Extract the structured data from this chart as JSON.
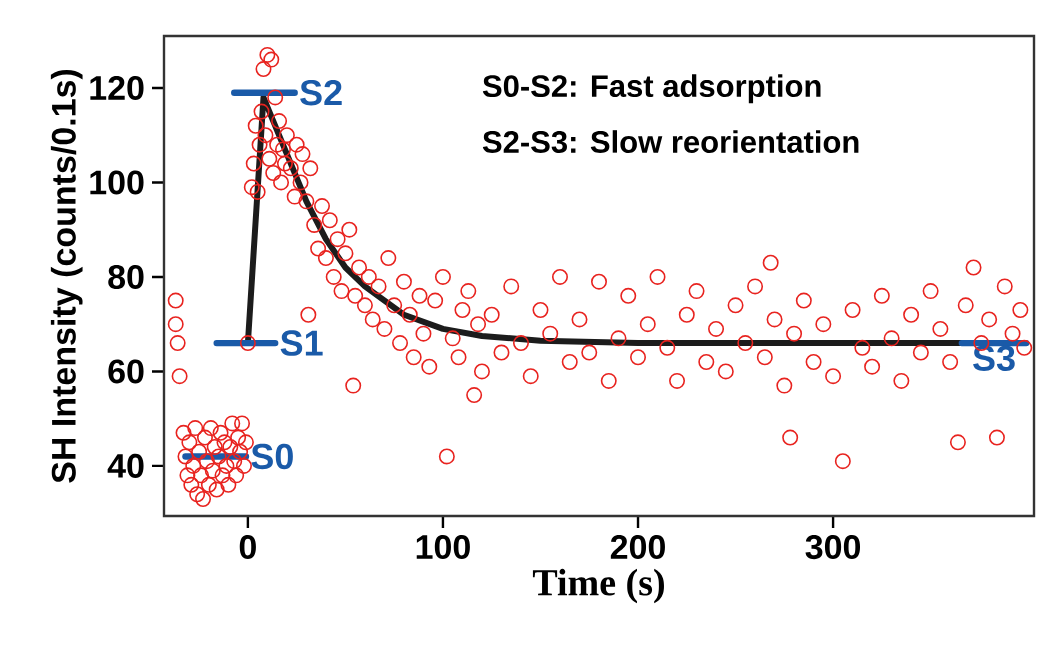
{
  "chart_data": {
    "type": "scatter",
    "xlabel": "Time (s)",
    "ylabel": "SH Intensity (counts/0.1s)",
    "xlim": [
      -43,
      403
    ],
    "ylim": [
      29.4,
      131
    ],
    "xticks": [
      0,
      100,
      200,
      300
    ],
    "yticks": [
      40,
      60,
      80,
      100,
      120
    ],
    "annotations": [
      "S0-S2: Fast adsorption",
      "S2-S3: Slow reorientation"
    ],
    "series": [
      {
        "color": "#e8231f",
        "marker": "circle",
        "x": [
          -37,
          -37,
          -36,
          -35,
          -33,
          -32,
          -31,
          -30,
          -29,
          -28,
          -27,
          -26,
          -25,
          -24,
          -23,
          -22,
          -21,
          -20,
          -19,
          -18,
          -17,
          -16,
          -15,
          -14,
          -13,
          -12,
          -11,
          -10,
          -9,
          -8,
          -7,
          -6,
          -5,
          -4,
          -3,
          -2,
          -1,
          0,
          2,
          3,
          4,
          5,
          6,
          7,
          8,
          9,
          10,
          11,
          12,
          13,
          14,
          15,
          16,
          17,
          18,
          19,
          20,
          22,
          24,
          25,
          27,
          28,
          30,
          31,
          32,
          34,
          36,
          38,
          40,
          42,
          44,
          46,
          48,
          50,
          52,
          54,
          55,
          57,
          60,
          62,
          64,
          67,
          70,
          72,
          75,
          78,
          80,
          83,
          85,
          88,
          90,
          93,
          96,
          100,
          102,
          105,
          108,
          110,
          113,
          116,
          118,
          120,
          125,
          130,
          135,
          140,
          145,
          150,
          155,
          160,
          165,
          170,
          175,
          180,
          185,
          190,
          195,
          200,
          205,
          210,
          215,
          220,
          225,
          230,
          235,
          240,
          245,
          250,
          255,
          260,
          265,
          268,
          270,
          275,
          278,
          280,
          285,
          290,
          295,
          300,
          305,
          310,
          315,
          320,
          325,
          330,
          335,
          340,
          345,
          350,
          355,
          360,
          364,
          368,
          372,
          376,
          380,
          384,
          388,
          392,
          396,
          398
        ],
        "values": [
          75,
          70,
          66,
          59,
          47,
          42,
          38,
          45,
          36,
          40,
          48,
          34,
          43,
          38,
          33,
          46,
          41,
          36,
          48,
          39,
          44,
          35,
          42,
          47,
          38,
          45,
          40,
          36,
          44,
          49,
          41,
          38,
          46,
          43,
          49,
          40,
          45,
          66,
          99,
          104,
          112,
          98,
          108,
          115,
          124,
          110,
          127,
          105,
          126,
          102,
          118,
          108,
          113,
          100,
          107,
          104,
          110,
          103,
          97,
          108,
          100,
          106,
          96,
          72,
          103,
          91,
          86,
          95,
          84,
          92,
          80,
          88,
          77,
          85,
          90,
          57,
          76,
          82,
          74,
          80,
          71,
          78,
          69,
          84,
          74,
          66,
          79,
          72,
          63,
          76,
          68,
          61,
          75,
          80,
          42,
          67,
          63,
          73,
          77,
          55,
          70,
          60,
          72,
          64,
          78,
          66,
          59,
          73,
          68,
          80,
          62,
          71,
          64,
          79,
          58,
          67,
          76,
          63,
          70,
          80,
          65,
          58,
          72,
          77,
          62,
          69,
          60,
          74,
          66,
          78,
          63,
          83,
          71,
          57,
          46,
          68,
          75,
          62,
          70,
          59,
          41,
          73,
          65,
          61,
          76,
          67,
          58,
          72,
          64,
          77,
          69,
          62,
          45,
          74,
          82,
          66,
          71,
          46,
          78,
          68,
          73,
          65
        ]
      },
      {
        "type": "line",
        "color": "#1c1c1c",
        "marker": "none",
        "x": [
          0,
          8,
          12,
          20,
          30,
          40,
          50,
          60,
          80,
          100,
          120,
          150,
          200,
          250,
          300,
          370
        ],
        "values": [
          66,
          118,
          114,
          106,
          96,
          88,
          82,
          78,
          72,
          69,
          67.5,
          66.5,
          66,
          66,
          66,
          66
        ]
      },
      {
        "type": "line",
        "name": "S0",
        "color": "#1a5aa8",
        "marker": "none",
        "x": [
          -32,
          -1
        ],
        "values": [
          42,
          42
        ]
      },
      {
        "type": "line",
        "name": "S1",
        "color": "#1a5aa8",
        "marker": "none",
        "x": [
          -16,
          14
        ],
        "values": [
          66,
          66
        ]
      },
      {
        "type": "line",
        "name": "S2",
        "color": "#1a5aa8",
        "marker": "none",
        "x": [
          -7,
          24
        ],
        "values": [
          119,
          119
        ]
      },
      {
        "type": "line",
        "name": "S3",
        "color": "#1a5aa8",
        "marker": "none",
        "x": [
          366,
          399
        ],
        "values": [
          66,
          66
        ]
      }
    ]
  }
}
